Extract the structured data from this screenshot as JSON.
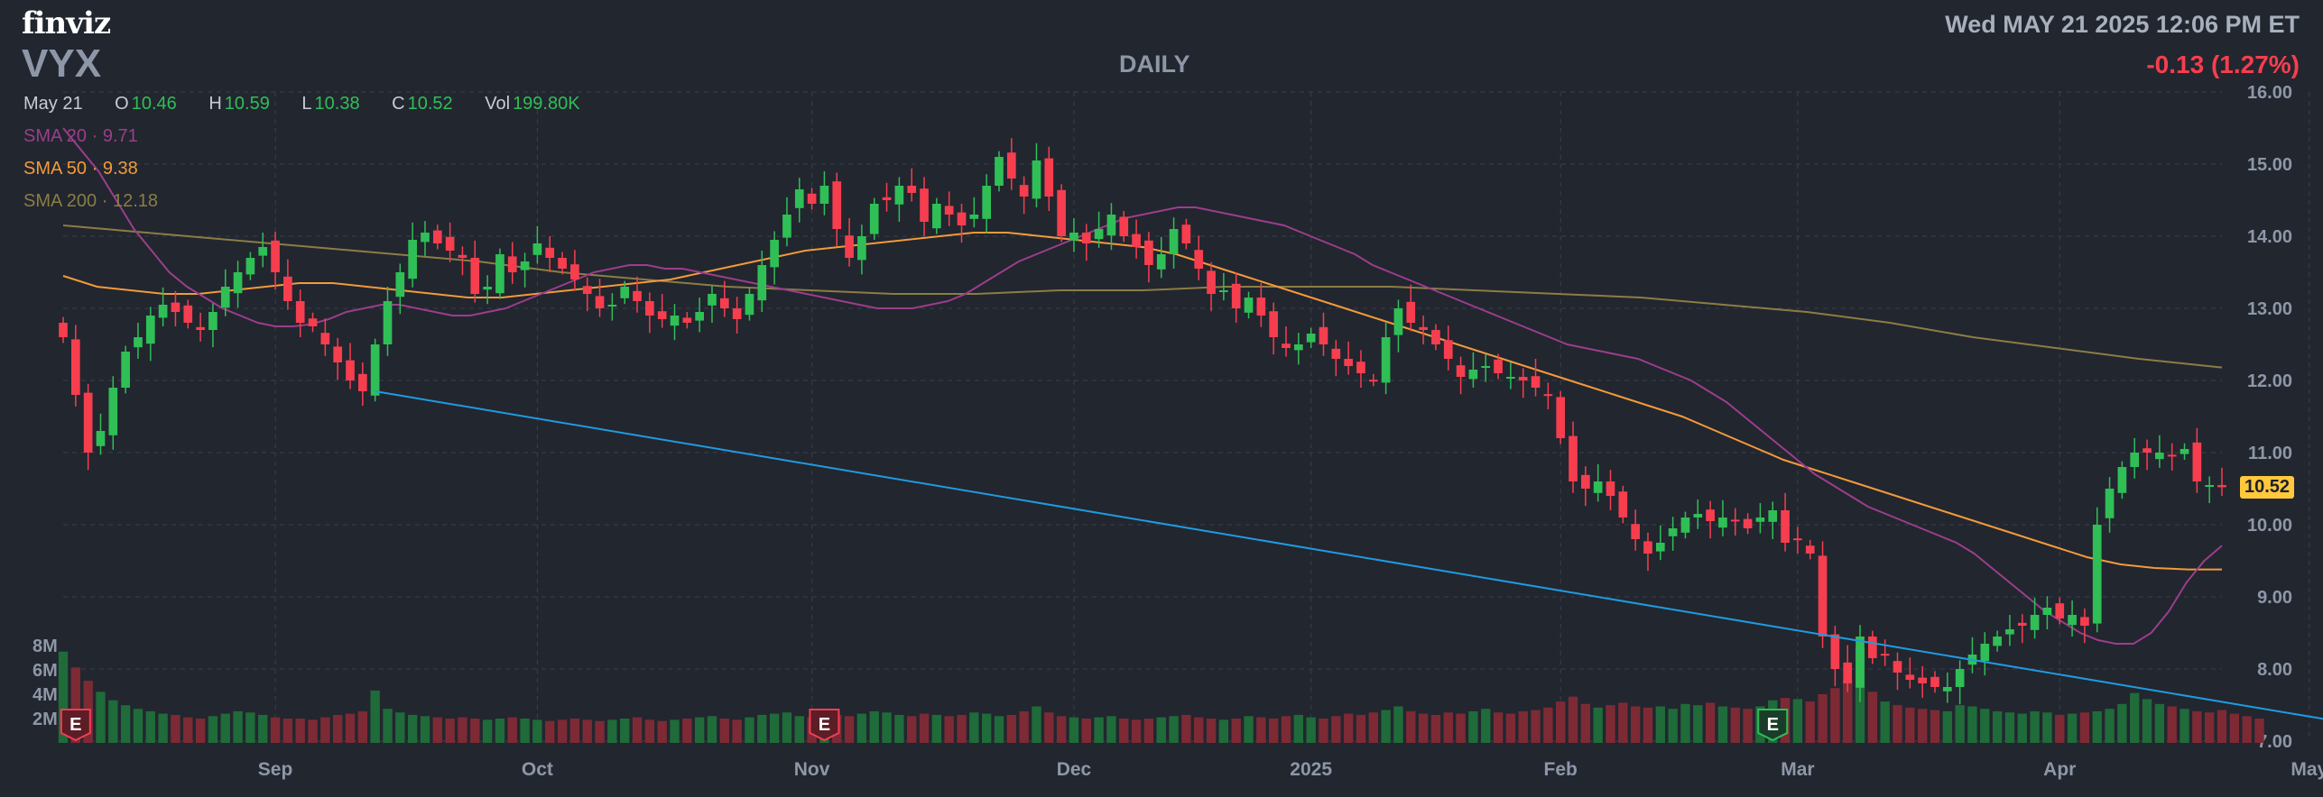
{
  "header": {
    "logo": "finviz",
    "ticker": "VYX",
    "timeframe": "DAILY",
    "datetime": "Wed MAY 21 2025 12:06 PM ET",
    "change": "-0.13 (1.27%)"
  },
  "ohlc": {
    "date": "May 21",
    "open_label": "O",
    "open": "10.46",
    "high_label": "H",
    "high": "10.59",
    "low_label": "L",
    "low": "10.38",
    "close_label": "C",
    "close": "10.52",
    "vol_label": "Vol",
    "vol": "199.80K"
  },
  "indicators": [
    {
      "label": "SMA 20",
      "value": "9.71",
      "color": "#9c3d8c"
    },
    {
      "label": "SMA 50",
      "value": "9.38",
      "color": "#f39a3a"
    },
    {
      "label": "SMA 200",
      "value": "12.18",
      "color": "#8b7d45"
    }
  ],
  "last_price": "10.52",
  "colors": {
    "up": "#2fbf56",
    "down": "#f63e4f",
    "up_vol": "#1f6b3a",
    "down_vol": "#7d2a35",
    "trendline": "#1f9be0",
    "grid": "#3a3f4b",
    "axis_text": "#8d97a8"
  },
  "chart_data": {
    "type": "candlestick",
    "price_axis": {
      "min": 7.0,
      "max": 16.0,
      "ticks": [
        "16.00",
        "15.00",
        "14.00",
        "13.00",
        "12.00",
        "11.00",
        "10.00",
        "9.00",
        "8.00",
        "7.00"
      ]
    },
    "volume_axis": {
      "max": 10000000,
      "ticks": [
        "8M",
        "6M",
        "4M",
        "2M"
      ]
    },
    "x_labels": [
      {
        "label": "Sep",
        "bar": 17
      },
      {
        "label": "Oct",
        "bar": 38
      },
      {
        "label": "Nov",
        "bar": 60
      },
      {
        "label": "Dec",
        "bar": 81
      },
      {
        "label": "2025",
        "bar": 100
      },
      {
        "label": "Feb",
        "bar": 120
      },
      {
        "label": "Mar",
        "bar": 139
      },
      {
        "label": "Apr",
        "bar": 160
      },
      {
        "label": "May",
        "bar": 180
      }
    ],
    "earnings_markers": [
      {
        "label": "E",
        "bar": 1,
        "type": "down"
      },
      {
        "label": "E",
        "bar": 61,
        "type": "down"
      },
      {
        "label": "E",
        "bar": 137,
        "type": "up"
      },
      {
        "label": "E",
        "bar": 183,
        "type": "up"
      }
    ],
    "trendline": {
      "start": {
        "bar": 25,
        "price": 11.85
      },
      "end": {
        "bar": 190,
        "price": 7.05
      }
    },
    "closes": [
      12.6,
      11.8,
      11.0,
      11.3,
      11.9,
      12.4,
      12.6,
      12.9,
      13.05,
      12.95,
      12.8,
      12.7,
      12.95,
      13.3,
      13.5,
      13.7,
      13.85,
      13.5,
      13.1,
      12.8,
      12.75,
      12.5,
      12.25,
      12.0,
      11.85,
      12.5,
      13.1,
      13.5,
      13.95,
      14.05,
      13.9,
      13.8,
      13.7,
      13.2,
      13.3,
      13.75,
      13.5,
      13.65,
      13.9,
      13.7,
      13.55,
      13.4,
      13.2,
      13.0,
      13.05,
      13.3,
      13.1,
      12.9,
      12.85,
      12.9,
      12.8,
      12.95,
      13.2,
      13.0,
      12.85,
      13.2,
      13.6,
      13.95,
      14.3,
      14.65,
      14.45,
      14.7,
      14.1,
      13.7,
      14.0,
      14.45,
      14.5,
      14.7,
      14.6,
      14.2,
      14.45,
      14.3,
      14.15,
      14.3,
      14.7,
      15.1,
      14.8,
      14.55,
      15.05,
      14.55,
      14.0,
      14.05,
      13.9,
      14.1,
      14.3,
      14.0,
      13.85,
      13.6,
      13.75,
      14.1,
      13.9,
      13.55,
      13.2,
      13.25,
      13.0,
      13.15,
      12.9,
      12.6,
      12.45,
      12.5,
      12.65,
      12.5,
      12.3,
      12.2,
      12.1,
      12.0,
      12.6,
      13.0,
      12.8,
      12.7,
      12.5,
      12.3,
      12.05,
      12.15,
      12.2,
      12.1,
      12.05,
      12.0,
      11.9,
      11.8,
      11.2,
      10.6,
      10.5,
      10.6,
      10.4,
      10.1,
      9.8,
      9.6,
      9.75,
      9.95,
      10.1,
      10.15,
      10.05,
      10.1,
      10.05,
      9.95,
      10.1,
      10.2,
      9.75,
      9.8,
      9.6,
      8.45,
      8.0,
      7.8,
      8.45,
      8.15,
      8.2,
      7.95,
      7.85,
      7.8,
      7.75,
      7.75,
      8.0,
      8.2,
      8.35,
      8.45,
      8.55,
      8.6,
      8.75,
      8.85,
      8.7,
      8.75,
      8.6,
      10.0,
      10.5,
      10.8,
      11.0,
      11.0,
      11.0,
      10.95,
      11.05,
      10.6,
      10.55,
      10.52
    ],
    "volumes": [
      7.5,
      6.2,
      5.1,
      4.2,
      3.5,
      3.1,
      2.8,
      2.6,
      2.4,
      2.3,
      2.1,
      2.0,
      2.2,
      2.4,
      2.6,
      2.5,
      2.3,
      2.1,
      2.0,
      2.0,
      1.9,
      2.1,
      2.3,
      2.4,
      2.6,
      4.3,
      2.8,
      2.5,
      2.3,
      2.2,
      2.1,
      2.0,
      2.1,
      2.0,
      1.9,
      2.0,
      2.1,
      2.0,
      1.9,
      1.8,
      1.9,
      2.0,
      1.9,
      1.8,
      1.9,
      2.0,
      2.1,
      1.9,
      1.8,
      1.9,
      2.0,
      2.1,
      2.2,
      2.0,
      1.9,
      2.1,
      2.3,
      2.4,
      2.5,
      2.2,
      2.1,
      2.4,
      2.3,
      2.2,
      2.4,
      2.6,
      2.5,
      2.3,
      2.2,
      2.4,
      2.3,
      2.2,
      2.3,
      2.5,
      2.4,
      2.2,
      2.3,
      2.6,
      3.0,
      2.5,
      2.2,
      2.1,
      2.0,
      2.1,
      2.2,
      2.0,
      1.9,
      2.0,
      2.1,
      2.2,
      2.3,
      2.1,
      2.0,
      1.9,
      2.0,
      2.2,
      2.1,
      2.0,
      2.2,
      2.3,
      2.1,
      2.0,
      2.2,
      2.4,
      2.3,
      2.5,
      2.7,
      3.0,
      2.6,
      2.4,
      2.3,
      2.5,
      2.4,
      2.6,
      2.8,
      2.5,
      2.4,
      2.6,
      2.7,
      2.9,
      3.4,
      3.8,
      3.2,
      2.9,
      3.1,
      3.3,
      3.0,
      2.9,
      3.0,
      2.8,
      3.2,
      3.1,
      3.3,
      3.0,
      2.9,
      2.8,
      3.0,
      3.5,
      3.7,
      3.6,
      3.4,
      4.0,
      4.5,
      5.2,
      7.8,
      4.2,
      3.4,
      3.1,
      2.9,
      2.8,
      2.7,
      2.6,
      3.1,
      3.0,
      2.8,
      2.6,
      2.5,
      2.4,
      2.6,
      2.5,
      2.3,
      2.4,
      2.5,
      2.6,
      2.8,
      3.2,
      4.1,
      3.6,
      3.2,
      3.0,
      2.8,
      2.6,
      2.5,
      2.7,
      2.4,
      2.2,
      2.0
    ],
    "sma20": {
      "start_bar": 0,
      "values": [
        15.5,
        15.2,
        14.9,
        14.5,
        14.1,
        13.8,
        13.5,
        13.3,
        13.15,
        13.0,
        12.9,
        12.8,
        12.75,
        12.75,
        12.78,
        12.85,
        12.95,
        13.0,
        13.05,
        13.05,
        13.0,
        12.95,
        12.9,
        12.9,
        12.95,
        13.0,
        13.1,
        13.2,
        13.3,
        13.4,
        13.5,
        13.55,
        13.6,
        13.6,
        13.55,
        13.55,
        13.5,
        13.45,
        13.4,
        13.35,
        13.3,
        13.25,
        13.2,
        13.15,
        13.1,
        13.05,
        13.0,
        13.0,
        13.0,
        13.05,
        13.1,
        13.2,
        13.35,
        13.5,
        13.65,
        13.75,
        13.85,
        13.95,
        14.05,
        14.15,
        14.25,
        14.3,
        14.35,
        14.4,
        14.4,
        14.35,
        14.3,
        14.25,
        14.2,
        14.15,
        14.05,
        13.95,
        13.85,
        13.75,
        13.6,
        13.5,
        13.4,
        13.3,
        13.2,
        13.1,
        13.0,
        12.9,
        12.8,
        12.7,
        12.6,
        12.5,
        12.45,
        12.4,
        12.35,
        12.3,
        12.2,
        12.1,
        12.0,
        11.85,
        11.7,
        11.5,
        11.3,
        11.1,
        10.9,
        10.7,
        10.55,
        10.4,
        10.25,
        10.15,
        10.05,
        9.95,
        9.85,
        9.75,
        9.6,
        9.4,
        9.2,
        9.0,
        8.8,
        8.65,
        8.5,
        8.4,
        8.35,
        8.35,
        8.5,
        8.8,
        9.2,
        9.5,
        9.71
      ]
    },
    "sma50": {
      "start_bar": 0,
      "values": [
        13.45,
        13.3,
        13.25,
        13.2,
        13.2,
        13.25,
        13.3,
        13.35,
        13.35,
        13.3,
        13.25,
        13.2,
        13.15,
        13.15,
        13.2,
        13.25,
        13.3,
        13.35,
        13.4,
        13.5,
        13.6,
        13.7,
        13.8,
        13.85,
        13.9,
        13.95,
        14.0,
        14.05,
        14.05,
        14.0,
        13.95,
        13.9,
        13.85,
        13.75,
        13.6,
        13.45,
        13.3,
        13.15,
        13.0,
        12.85,
        12.7,
        12.55,
        12.4,
        12.25,
        12.1,
        11.95,
        11.8,
        11.65,
        11.5,
        11.3,
        11.1,
        10.9,
        10.75,
        10.6,
        10.45,
        10.3,
        10.15,
        10.0,
        9.85,
        9.7,
        9.55,
        9.45,
        9.4,
        9.38,
        9.38
      ]
    },
    "sma200": {
      "start_bar": 0,
      "values": [
        14.15,
        14.05,
        13.95,
        13.85,
        13.75,
        13.65,
        13.5,
        13.4,
        13.3,
        13.25,
        13.2,
        13.2,
        13.25,
        13.25,
        13.3,
        13.3,
        13.3,
        13.25,
        13.2,
        13.15,
        13.05,
        12.95,
        12.8,
        12.6,
        12.45,
        12.3,
        12.18
      ]
    }
  }
}
